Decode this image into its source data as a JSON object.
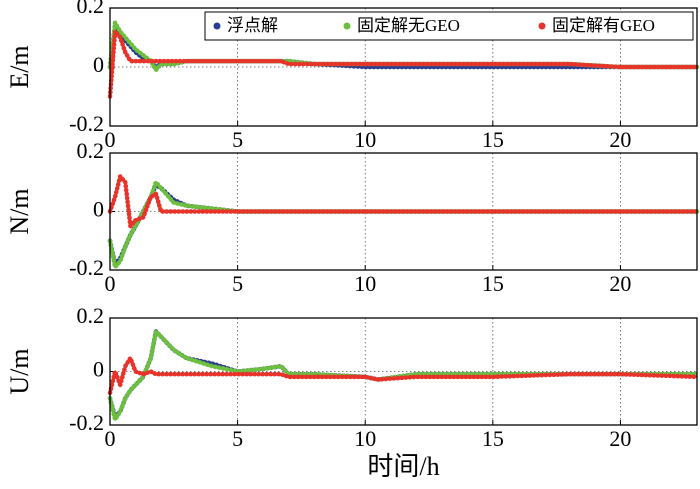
{
  "chart_data": [
    {
      "type": "line",
      "ylabel": "E/m",
      "xlim": [
        0,
        23
      ],
      "ylim": [
        -0.2,
        0.2
      ],
      "xticks": [
        0,
        5,
        10,
        15,
        20
      ],
      "yticks": [
        0.2,
        0,
        -0.2
      ],
      "grid": true,
      "legend": "upper right",
      "x": [
        0,
        0.2,
        0.4,
        0.6,
        0.8,
        1,
        1.3,
        1.6,
        1.8,
        2,
        2.5,
        3,
        4,
        5,
        6,
        6.7,
        7,
        8,
        10,
        10.5,
        12,
        15,
        18,
        20,
        23
      ],
      "series": [
        {
          "name": "浮点解",
          "color": "#2b3d8f",
          "values": [
            0.0,
            0.14,
            0.11,
            0.09,
            0.07,
            0.05,
            0.03,
            0.02,
            0.0,
            0.01,
            0.01,
            0.02,
            0.02,
            0.02,
            0.02,
            0.02,
            0.02,
            0.01,
            0.0,
            0.0,
            0.0,
            0.0,
            0.0,
            0.0,
            0.0
          ]
        },
        {
          "name": "固定解无GEO",
          "color": "#6cbf3f",
          "values": [
            0.0,
            0.15,
            0.12,
            0.1,
            0.08,
            0.06,
            0.04,
            0.02,
            -0.01,
            0.01,
            0.01,
            0.02,
            0.02,
            0.02,
            0.02,
            0.02,
            0.02,
            0.01,
            0.01,
            0.01,
            0.01,
            0.01,
            0.01,
            0.0,
            0.0
          ]
        },
        {
          "name": "固定解有GEO",
          "color": "#e8322a",
          "values": [
            -0.1,
            0.12,
            0.1,
            0.05,
            0.02,
            0.02,
            0.02,
            0.02,
            0.02,
            0.02,
            0.02,
            0.02,
            0.02,
            0.02,
            0.02,
            0.02,
            0.01,
            0.01,
            0.01,
            0.01,
            0.01,
            0.01,
            0.01,
            0.0,
            0.0
          ]
        }
      ]
    },
    {
      "type": "line",
      "ylabel": "N/m",
      "xlim": [
        0,
        23
      ],
      "ylim": [
        -0.2,
        0.2
      ],
      "xticks": [
        0,
        5,
        10,
        15,
        20
      ],
      "yticks": [
        0.2,
        0,
        -0.2
      ],
      "grid": true,
      "x": [
        0,
        0.2,
        0.4,
        0.6,
        0.8,
        1,
        1.3,
        1.6,
        1.8,
        2,
        2.5,
        3,
        4,
        5,
        6,
        6.7,
        7,
        8,
        10,
        10.5,
        12,
        15,
        18,
        20,
        23
      ],
      "series": [
        {
          "color": "#2b3d8f",
          "values": [
            -0.1,
            -0.18,
            -0.16,
            -0.12,
            -0.08,
            -0.05,
            0.0,
            0.05,
            0.09,
            0.08,
            0.04,
            0.02,
            0.01,
            0.0,
            0.0,
            0.0,
            0.0,
            0.0,
            0.0,
            0.0,
            0.0,
            0.0,
            0.0,
            0.0,
            0.0
          ]
        },
        {
          "color": "#6cbf3f",
          "values": [
            -0.1,
            -0.19,
            -0.17,
            -0.12,
            -0.08,
            -0.05,
            0.0,
            0.05,
            0.1,
            0.08,
            0.03,
            0.02,
            0.01,
            0.0,
            0.0,
            0.0,
            0.0,
            0.0,
            0.0,
            0.0,
            0.0,
            0.0,
            0.0,
            0.0,
            0.0
          ]
        },
        {
          "color": "#e8322a",
          "values": [
            0.0,
            0.05,
            0.12,
            0.1,
            -0.05,
            -0.03,
            -0.02,
            0.05,
            0.06,
            0.0,
            0.0,
            0.0,
            0.0,
            0.0,
            0.0,
            0.0,
            0.0,
            0.0,
            0.0,
            0.0,
            0.0,
            0.0,
            0.0,
            0.0,
            0.0
          ]
        }
      ]
    },
    {
      "type": "line",
      "ylabel": "U/m",
      "xlabel": "时间/h",
      "xlim": [
        0,
        23
      ],
      "ylim": [
        -0.2,
        0.2
      ],
      "xticks": [
        0,
        5,
        10,
        15,
        20
      ],
      "yticks": [
        0.2,
        0,
        -0.2
      ],
      "grid": true,
      "x": [
        0,
        0.2,
        0.4,
        0.6,
        0.8,
        1,
        1.3,
        1.6,
        1.8,
        2,
        2.5,
        3,
        4,
        5,
        6,
        6.7,
        7,
        8,
        10,
        10.5,
        12,
        15,
        18,
        20,
        23
      ],
      "series": [
        {
          "color": "#2b3d8f",
          "values": [
            -0.1,
            -0.17,
            -0.15,
            -0.1,
            -0.07,
            -0.05,
            -0.02,
            0.05,
            0.15,
            0.13,
            0.08,
            0.05,
            0.03,
            0.0,
            0.01,
            0.02,
            -0.01,
            -0.01,
            -0.02,
            -0.03,
            -0.01,
            -0.01,
            -0.01,
            -0.01,
            -0.01
          ]
        },
        {
          "color": "#6cbf3f",
          "values": [
            -0.1,
            -0.18,
            -0.15,
            -0.1,
            -0.07,
            -0.05,
            -0.02,
            0.05,
            0.15,
            0.13,
            0.08,
            0.05,
            0.02,
            0.0,
            0.01,
            0.02,
            -0.01,
            -0.01,
            -0.02,
            -0.03,
            -0.01,
            -0.01,
            -0.01,
            -0.01,
            -0.01
          ]
        },
        {
          "color": "#e8322a",
          "values": [
            -0.08,
            0.0,
            -0.05,
            0.02,
            0.05,
            0.0,
            -0.01,
            0.0,
            -0.01,
            -0.01,
            -0.01,
            -0.01,
            -0.01,
            -0.01,
            -0.01,
            -0.01,
            -0.02,
            -0.02,
            -0.02,
            -0.03,
            -0.02,
            -0.02,
            -0.01,
            -0.01,
            -0.02
          ]
        }
      ]
    }
  ]
}
